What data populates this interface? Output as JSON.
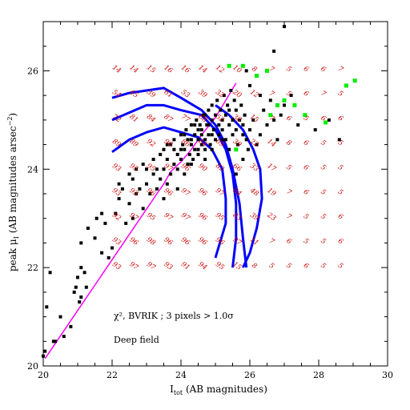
{
  "chart_data": {
    "type": "scatter",
    "xlabel": "I_tot (AB magnitudes)",
    "ylabel": "peak μ_I (AB magnitudes arsec^-2)",
    "xlabel_main": "I",
    "xlabel_sub": "tot",
    "xlabel_rest": " (AB magnitudes)",
    "ylabel_main": "peak μ",
    "ylabel_sub": "I",
    "ylabel_rest": "  (AB magnitudes arsec",
    "ylabel_sup": "−2",
    "ylabel_end": ")",
    "xlim": [
      20,
      30
    ],
    "ylim": [
      20,
      27
    ],
    "x_ticks": [
      "20",
      "22",
      "24",
      "26",
      "28",
      "30"
    ],
    "y_ticks": [
      "20",
      "22",
      "24",
      "26"
    ],
    "annotations": [
      "χ², BVRIK ; 3 pixels > 1.0σ",
      "Deep field"
    ],
    "grid_x": [
      22.1,
      22.6,
      23.1,
      23.6,
      24.1,
      24.6,
      25.1,
      25.6,
      26.1,
      26.6,
      27.1,
      27.6,
      28.1,
      28.6
    ],
    "grid_y": [
      26.0,
      25.5,
      25.0,
      24.5,
      24.0,
      23.5,
      23.0,
      22.5,
      22.0
    ],
    "grid_values": [
      [
        "14",
        "14",
        "15",
        "16",
        "16",
        "14",
        "12",
        "10",
        "8",
        "7",
        "5",
        "6",
        "6",
        "7"
      ],
      [
        "54",
        "45",
        "39",
        "61",
        "53",
        "39",
        "32",
        "20",
        "12",
        "7",
        "5",
        "6",
        "7",
        "5"
      ],
      [
        "72",
        "81",
        "84",
        "87",
        "77",
        "68",
        "52",
        "38",
        "15",
        "7",
        "6",
        "5",
        "6",
        "6"
      ],
      [
        "89",
        "89",
        "92",
        "90",
        "86",
        "84",
        "69",
        "39",
        "22",
        "14",
        "8",
        "6",
        "5",
        "5"
      ],
      [
        "93",
        "95",
        "95",
        "97",
        "96",
        "90",
        "82",
        "66",
        "33",
        "17",
        "5",
        "6",
        "5",
        "5"
      ],
      [
        "93",
        "93",
        "96",
        "96",
        "97",
        "96",
        "97",
        "84",
        "48",
        "19",
        "7",
        "6",
        "5",
        "5"
      ],
      [
        "92",
        "97",
        "95",
        "97",
        "97",
        "96",
        "95",
        "83",
        "39",
        "23",
        "7",
        "5",
        "5",
        "6"
      ],
      [
        "93",
        "96",
        "98",
        "96",
        "96",
        "96",
        "96",
        "97",
        "11",
        "7",
        "6",
        "5",
        "5",
        "6"
      ],
      [
        "93",
        "97",
        "97",
        "93",
        "91",
        "94",
        "95",
        "15",
        "8",
        "5",
        "5",
        "6",
        "5",
        "5"
      ]
    ],
    "series": [
      {
        "color": "#000000",
        "marker": "square",
        "points": [
          [
            20.0,
            20.2
          ],
          [
            20.05,
            20.3
          ],
          [
            20.1,
            21.2
          ],
          [
            20.2,
            21.9
          ],
          [
            20.3,
            20.5
          ],
          [
            20.35,
            20.5
          ],
          [
            20.5,
            21.0
          ],
          [
            20.6,
            20.6
          ],
          [
            20.8,
            20.8
          ],
          [
            20.9,
            21.5
          ],
          [
            20.95,
            21.6
          ],
          [
            21.0,
            21.8
          ],
          [
            21.05,
            21.3
          ],
          [
            21.1,
            21.4
          ],
          [
            21.1,
            22.0
          ],
          [
            21.2,
            21.9
          ],
          [
            21.25,
            21.6
          ],
          [
            21.1,
            22.5
          ],
          [
            21.3,
            22.8
          ],
          [
            21.5,
            22.6
          ],
          [
            21.55,
            23.0
          ],
          [
            21.7,
            22.3
          ],
          [
            21.9,
            22.2
          ],
          [
            21.7,
            23.1
          ],
          [
            21.8,
            22.9
          ],
          [
            22.0,
            22.4
          ],
          [
            22.1,
            23.1
          ],
          [
            22.2,
            23.4
          ],
          [
            22.3,
            23.6
          ],
          [
            22.2,
            23.7
          ],
          [
            22.4,
            22.9
          ],
          [
            22.5,
            23.3
          ],
          [
            22.6,
            23.0
          ],
          [
            22.7,
            23.5
          ],
          [
            22.8,
            23.6
          ],
          [
            22.9,
            23.2
          ],
          [
            22.6,
            23.8
          ],
          [
            22.5,
            23.9
          ],
          [
            22.7,
            24.0
          ],
          [
            22.9,
            24.1
          ],
          [
            23.0,
            23.7
          ],
          [
            23.0,
            24.0
          ],
          [
            23.1,
            23.5
          ],
          [
            23.2,
            23.9
          ],
          [
            23.2,
            24.2
          ],
          [
            23.3,
            23.6
          ],
          [
            23.3,
            24.0
          ],
          [
            23.4,
            24.3
          ],
          [
            23.4,
            23.8
          ],
          [
            23.5,
            24.0
          ],
          [
            23.5,
            24.4
          ],
          [
            23.6,
            23.7
          ],
          [
            23.6,
            24.2
          ],
          [
            23.7,
            24.5
          ],
          [
            23.7,
            23.9
          ],
          [
            23.8,
            24.1
          ],
          [
            23.8,
            24.6
          ],
          [
            23.9,
            24.3
          ],
          [
            23.9,
            24.0
          ],
          [
            24.0,
            24.7
          ],
          [
            24.0,
            24.2
          ],
          [
            24.05,
            24.5
          ],
          [
            24.1,
            23.9
          ],
          [
            24.1,
            24.4
          ],
          [
            24.15,
            24.8
          ],
          [
            24.2,
            24.1
          ],
          [
            24.2,
            24.6
          ],
          [
            24.25,
            24.3
          ],
          [
            24.3,
            24.9
          ],
          [
            24.3,
            24.5
          ],
          [
            24.35,
            24.2
          ],
          [
            24.4,
            24.7
          ],
          [
            24.4,
            24.4
          ],
          [
            24.45,
            25.0
          ],
          [
            24.5,
            24.6
          ],
          [
            24.5,
            24.3
          ],
          [
            24.55,
            24.9
          ],
          [
            24.6,
            24.5
          ],
          [
            24.6,
            24.8
          ],
          [
            24.65,
            25.1
          ],
          [
            24.7,
            24.6
          ],
          [
            24.7,
            24.4
          ],
          [
            24.75,
            24.9
          ],
          [
            24.8,
            25.2
          ],
          [
            24.8,
            24.7
          ],
          [
            24.85,
            24.5
          ],
          [
            24.9,
            25.0
          ],
          [
            24.9,
            25.3
          ],
          [
            24.95,
            24.8
          ],
          [
            25.0,
            24.6
          ],
          [
            25.0,
            25.1
          ],
          [
            25.05,
            25.4
          ],
          [
            25.1,
            24.9
          ],
          [
            25.1,
            24.7
          ],
          [
            25.15,
            25.2
          ],
          [
            25.2,
            25.0
          ],
          [
            25.2,
            24.8
          ],
          [
            25.25,
            25.5
          ],
          [
            25.3,
            25.1
          ],
          [
            25.3,
            24.6
          ],
          [
            25.35,
            25.3
          ],
          [
            25.4,
            24.9
          ],
          [
            25.4,
            25.2
          ],
          [
            25.45,
            25.6
          ],
          [
            25.5,
            24.7
          ],
          [
            25.5,
            25.0
          ],
          [
            25.55,
            25.4
          ],
          [
            25.6,
            24.8
          ],
          [
            25.6,
            25.2
          ],
          [
            25.65,
            24.5
          ],
          [
            25.7,
            25.0
          ],
          [
            25.75,
            25.3
          ],
          [
            25.8,
            24.7
          ],
          [
            25.8,
            24.9
          ],
          [
            25.85,
            25.1
          ],
          [
            25.9,
            24.6
          ],
          [
            25.95,
            24.4
          ],
          [
            26.0,
            24.8
          ],
          [
            26.1,
            25.0
          ],
          [
            26.2,
            24.5
          ],
          [
            26.3,
            24.7
          ],
          [
            26.4,
            25.2
          ],
          [
            26.5,
            24.9
          ],
          [
            26.6,
            25.4
          ],
          [
            26.7,
            25.0
          ],
          [
            26.8,
            24.6
          ],
          [
            26.9,
            25.1
          ],
          [
            27.0,
            25.3
          ],
          [
            27.2,
            25.5
          ],
          [
            27.4,
            24.9
          ],
          [
            27.6,
            25.1
          ],
          [
            27.9,
            24.8
          ],
          [
            28.3,
            25.0
          ],
          [
            28.6,
            24.6
          ],
          [
            26.0,
            25.7
          ],
          [
            26.3,
            25.5
          ],
          [
            25.9,
            26.0
          ],
          [
            26.7,
            26.4
          ],
          [
            27.0,
            26.9
          ],
          [
            25.6,
            23.9
          ],
          [
            25.8,
            24.2
          ],
          [
            25.4,
            24.4
          ],
          [
            24.2,
            24.1
          ],
          [
            23.9,
            23.6
          ],
          [
            23.5,
            23.4
          ],
          [
            24.8,
            24.9
          ],
          [
            24.6,
            24.7
          ],
          [
            24.4,
            24.9
          ],
          [
            24.7,
            25.1
          ],
          [
            24.5,
            24.8
          ],
          [
            24.3,
            24.6
          ],
          [
            24.9,
            24.7
          ],
          [
            25.2,
            24.6
          ],
          [
            24.0,
            24.4
          ],
          [
            23.8,
            24.4
          ],
          [
            23.6,
            24.5
          ],
          [
            24.1,
            24.7
          ],
          [
            24.3,
            24.1
          ],
          [
            24.5,
            24.4
          ],
          [
            24.7,
            24.2
          ],
          [
            24.9,
            24.4
          ]
        ]
      },
      {
        "color": "#00ee00",
        "marker": "square",
        "points": [
          [
            25.4,
            26.1
          ],
          [
            25.8,
            26.1
          ],
          [
            26.2,
            25.9
          ],
          [
            26.5,
            26.0
          ],
          [
            26.8,
            25.3
          ],
          [
            27.0,
            25.4
          ],
          [
            27.3,
            25.3
          ],
          [
            27.6,
            25.1
          ],
          [
            28.2,
            24.95
          ],
          [
            28.8,
            25.7
          ],
          [
            29.05,
            25.8
          ],
          [
            25.6,
            24.4
          ],
          [
            26.6,
            25.1
          ]
        ]
      }
    ],
    "lines": [
      {
        "color": "#ff00ff",
        "points": [
          [
            20.05,
            20.15
          ],
          [
            23.3,
            23.5
          ],
          [
            23.5,
            23.7
          ],
          [
            23.7,
            23.95
          ],
          [
            24.0,
            24.15
          ],
          [
            24.3,
            24.4
          ],
          [
            24.6,
            24.7
          ],
          [
            25.0,
            25.05
          ],
          [
            25.3,
            25.4
          ],
          [
            25.6,
            25.75
          ]
        ]
      },
      {
        "color": "#0000ff",
        "points": [
          [
            22.0,
            25.45
          ],
          [
            22.5,
            25.55
          ],
          [
            23.0,
            25.6
          ],
          [
            23.5,
            25.65
          ],
          [
            24.0,
            25.45
          ],
          [
            24.6,
            25.2
          ],
          [
            25.0,
            24.9
          ],
          [
            25.3,
            24.5
          ],
          [
            25.5,
            24.0
          ],
          [
            25.7,
            23.3
          ],
          [
            25.8,
            22.6
          ],
          [
            25.9,
            22.0
          ]
        ]
      },
      {
        "color": "#0000ff",
        "points": [
          [
            22.0,
            25.0
          ],
          [
            22.5,
            25.15
          ],
          [
            23.0,
            25.3
          ],
          [
            23.5,
            25.3
          ],
          [
            24.0,
            25.2
          ],
          [
            24.6,
            25.1
          ],
          [
            25.0,
            24.8
          ],
          [
            25.3,
            24.4
          ],
          [
            25.5,
            23.9
          ],
          [
            25.6,
            23.3
          ],
          [
            25.6,
            22.6
          ],
          [
            25.5,
            22.0
          ]
        ]
      },
      {
        "color": "#0000ff",
        "points": [
          [
            22.0,
            24.35
          ],
          [
            22.5,
            24.6
          ],
          [
            23.0,
            24.75
          ],
          [
            23.5,
            24.85
          ],
          [
            24.0,
            24.75
          ],
          [
            24.5,
            24.65
          ],
          [
            24.9,
            24.4
          ],
          [
            25.2,
            24.0
          ],
          [
            25.3,
            23.4
          ],
          [
            25.3,
            22.9
          ],
          [
            25.0,
            22.2
          ]
        ]
      },
      {
        "color": "#0000ff",
        "points": [
          [
            25.0,
            25.3
          ],
          [
            25.4,
            25.1
          ],
          [
            25.8,
            24.8
          ],
          [
            26.1,
            24.4
          ],
          [
            26.3,
            24.0
          ],
          [
            26.35,
            23.4
          ],
          [
            26.2,
            22.8
          ],
          [
            26.0,
            22.3
          ],
          [
            25.8,
            22.0
          ]
        ]
      }
    ]
  }
}
